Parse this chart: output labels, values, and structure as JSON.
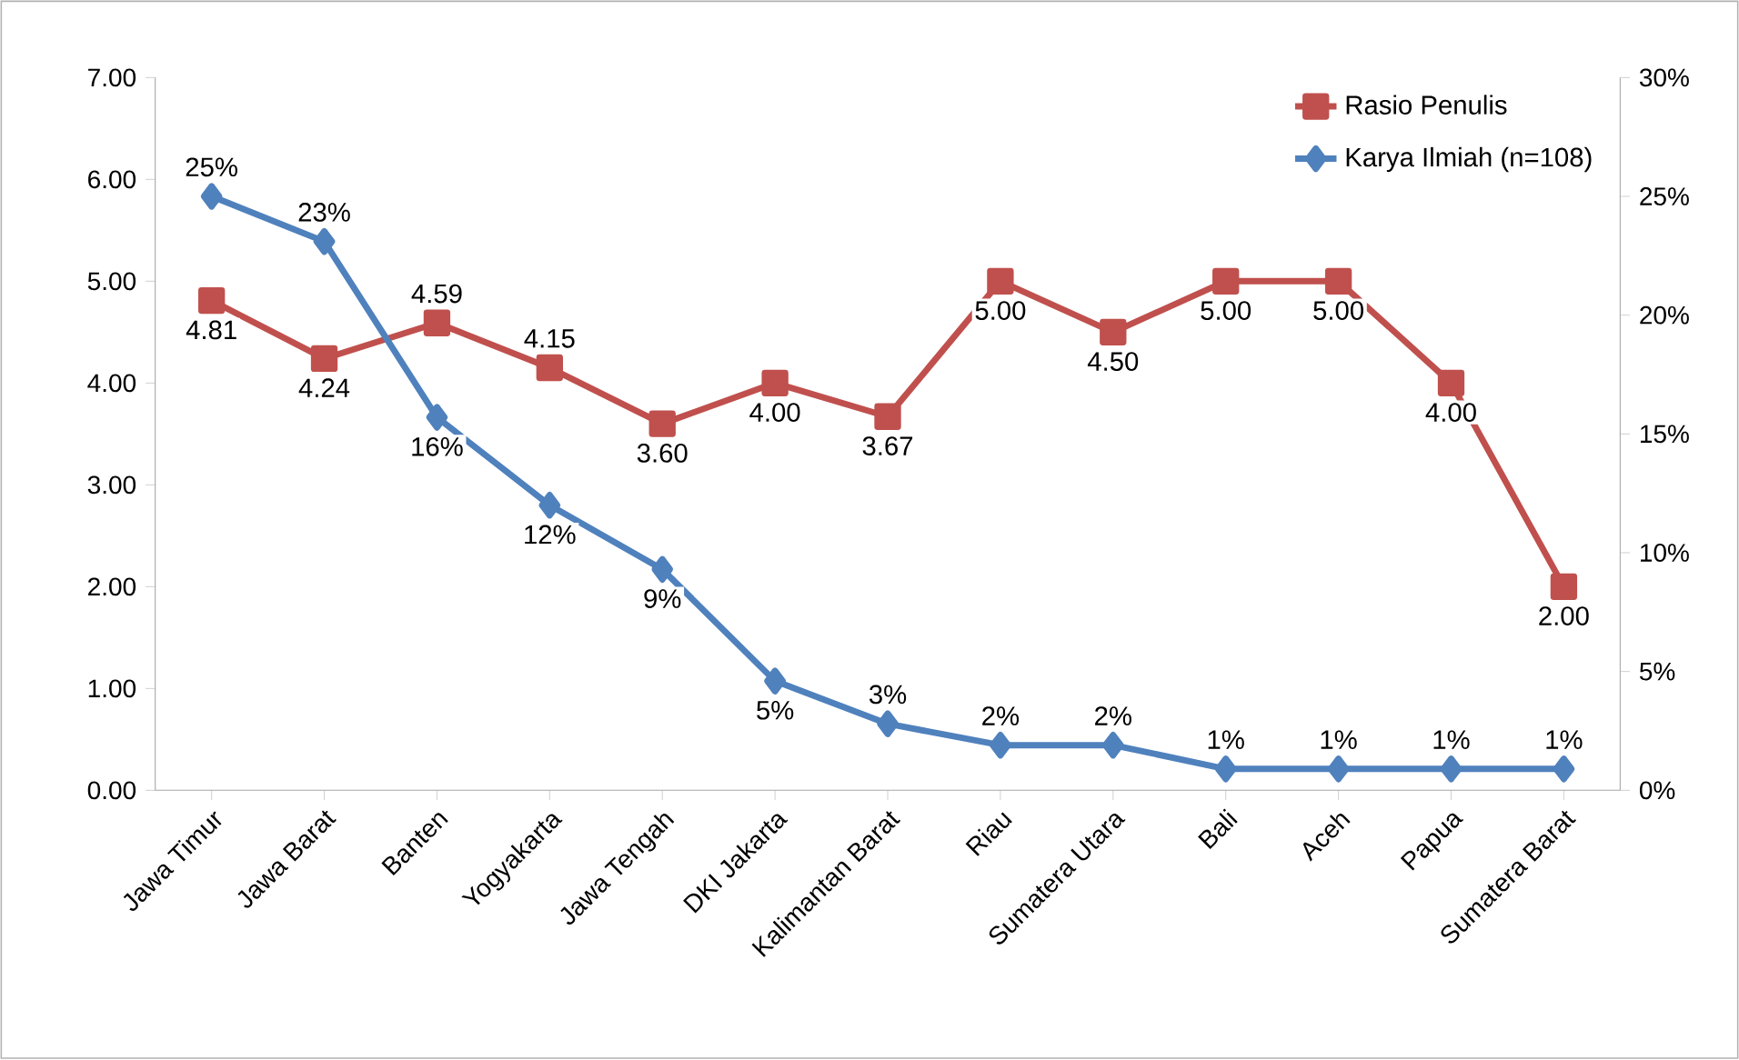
{
  "chart_data": {
    "type": "line",
    "categories": [
      "Jawa Timur",
      "Jawa Barat",
      "Banten",
      "Yogyakarta",
      "Jawa Tengah",
      "DKI Jakarta",
      "Kalimantan Barat",
      "Riau",
      "Sumatera Utara",
      "Bali",
      "Aceh",
      "Papua",
      "Sumatera Barat"
    ],
    "series": [
      {
        "name": "Rasio Penulis",
        "color": "#c0504d",
        "marker": "square",
        "axis": "y",
        "values": [
          4.81,
          4.24,
          4.59,
          4.15,
          3.6,
          4.0,
          3.67,
          5.0,
          4.5,
          5.0,
          5.0,
          4.0,
          2.0
        ],
        "value_labels": [
          "4.81",
          "4.24",
          "4.59",
          "4.15",
          "3.60",
          "4.00",
          "3.67",
          "5.00",
          "4.50",
          "5.00",
          "5.00",
          "4.00",
          "2.00"
        ]
      },
      {
        "name": "Karya Ilmiah (n=108)",
        "color": "#4f81bd",
        "marker": "diamond",
        "axis": "y2",
        "values": [
          25.0,
          23.1,
          15.7,
          12.0,
          9.3,
          4.6,
          2.8,
          1.9,
          1.9,
          0.9,
          0.9,
          0.9,
          0.9
        ],
        "value_labels": [
          "25%",
          "23%",
          "16%",
          "12%",
          "9%",
          "5%",
          "3%",
          "2%",
          "2%",
          "1%",
          "1%",
          "1%",
          "1%"
        ]
      }
    ],
    "ylim": [
      0,
      7
    ],
    "yticks": [
      {
        "value": 0,
        "label": "0.00"
      },
      {
        "value": 1,
        "label": "1.00"
      },
      {
        "value": 2,
        "label": "2.00"
      },
      {
        "value": 3,
        "label": "3.00"
      },
      {
        "value": 4,
        "label": "4.00"
      },
      {
        "value": 5,
        "label": "5.00"
      },
      {
        "value": 6,
        "label": "6.00"
      },
      {
        "value": 7,
        "label": "7.00"
      }
    ],
    "y2lim": [
      0,
      30
    ],
    "y2ticks": [
      {
        "value": 0,
        "label": "0%"
      },
      {
        "value": 5,
        "label": "5%"
      },
      {
        "value": 10,
        "label": "10%"
      },
      {
        "value": 15,
        "label": "15%"
      },
      {
        "value": 20,
        "label": "20%"
      },
      {
        "value": 25,
        "label": "25%"
      },
      {
        "value": 30,
        "label": "30%"
      }
    ],
    "grid": false,
    "legend": "top right",
    "line_style": "solid"
  }
}
